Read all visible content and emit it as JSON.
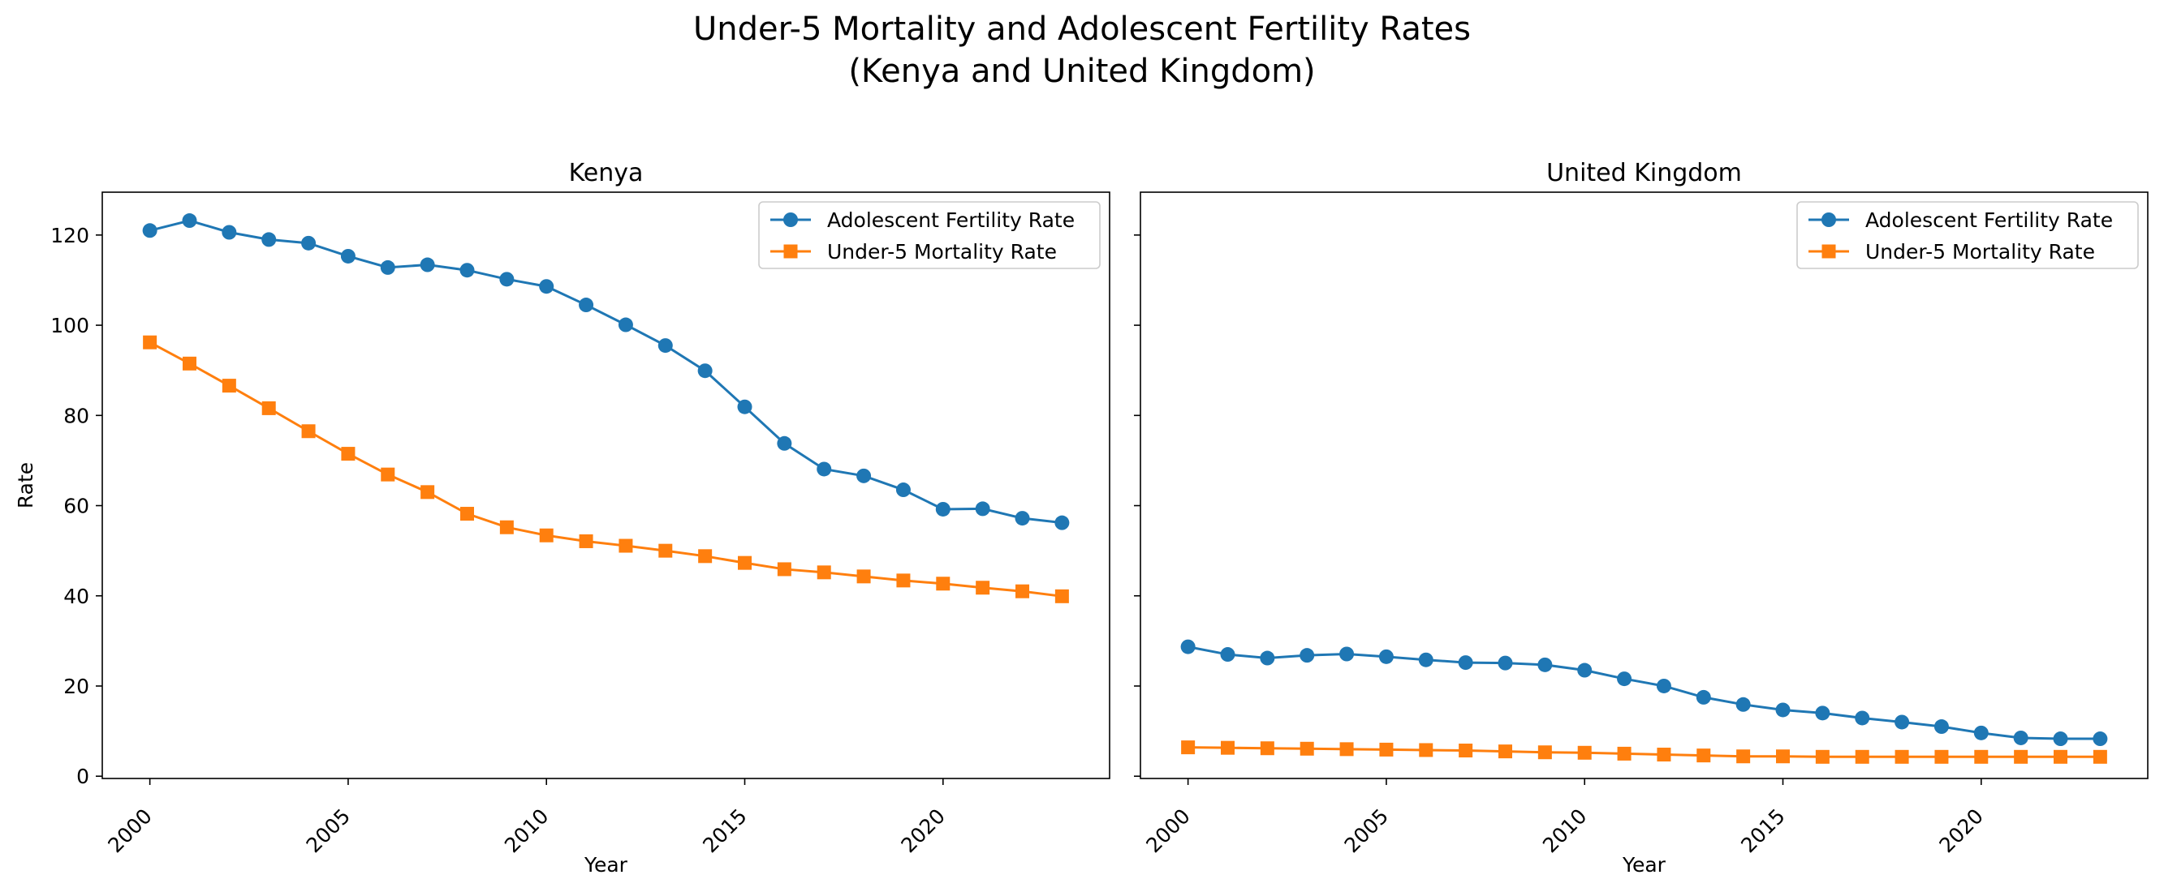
{
  "figure": {
    "title_line1": "Under-5 Mortality and Adolescent Fertility Rates",
    "title_line2": "(Kenya and United Kingdom)"
  },
  "chart_data": [
    {
      "type": "line",
      "title": "Kenya",
      "xlabel": "Year",
      "ylabel": "Rate",
      "x": [
        2000,
        2001,
        2002,
        2003,
        2004,
        2005,
        2006,
        2007,
        2008,
        2009,
        2010,
        2011,
        2012,
        2013,
        2014,
        2015,
        2016,
        2017,
        2018,
        2019,
        2020,
        2021,
        2022,
        2023
      ],
      "xticks": [
        2000,
        2005,
        2010,
        2015,
        2020
      ],
      "yticks": [
        0,
        20,
        40,
        60,
        80,
        100,
        120
      ],
      "xlim": [
        1998.8,
        2024.2
      ],
      "ylim": [
        -0.5,
        129.5
      ],
      "grid": false,
      "legend": "upper right",
      "series": [
        {
          "name": "Adolescent Fertility Rate",
          "color": "#1f77b4",
          "marker": "circle",
          "values": [
            121.0,
            123.2,
            120.6,
            119.0,
            118.2,
            115.3,
            112.8,
            113.4,
            112.2,
            110.2,
            108.6,
            104.5,
            100.1,
            95.5,
            89.9,
            81.9,
            73.8,
            68.1,
            66.6,
            63.5,
            59.2,
            59.3,
            57.2,
            56.2
          ]
        },
        {
          "name": "Under-5 Mortality Rate",
          "color": "#ff7f0e",
          "marker": "square",
          "values": [
            96.2,
            91.5,
            86.6,
            81.6,
            76.5,
            71.5,
            66.9,
            63.0,
            58.2,
            55.2,
            53.4,
            52.1,
            51.1,
            50.0,
            48.8,
            47.3,
            45.9,
            45.2,
            44.3,
            43.4,
            42.7,
            41.8,
            41.0,
            39.9
          ]
        }
      ]
    },
    {
      "type": "line",
      "title": "United Kingdom",
      "xlabel": "Year",
      "ylabel": "",
      "x": [
        2000,
        2001,
        2002,
        2003,
        2004,
        2005,
        2006,
        2007,
        2008,
        2009,
        2010,
        2011,
        2012,
        2013,
        2014,
        2015,
        2016,
        2017,
        2018,
        2019,
        2020,
        2021,
        2022,
        2023
      ],
      "xticks": [
        2000,
        2005,
        2010,
        2015,
        2020
      ],
      "yticks": [
        0,
        20,
        40,
        60,
        80,
        100,
        120
      ],
      "xlim": [
        1998.8,
        2024.2
      ],
      "ylim": [
        -0.5,
        129.5
      ],
      "sharey": true,
      "grid": false,
      "legend": "upper right",
      "series": [
        {
          "name": "Adolescent Fertility Rate",
          "color": "#1f77b4",
          "marker": "circle",
          "values": [
            28.7,
            27.0,
            26.2,
            26.8,
            27.1,
            26.5,
            25.8,
            25.2,
            25.1,
            24.7,
            23.5,
            21.6,
            20.0,
            17.5,
            15.9,
            14.7,
            14.0,
            12.9,
            12.0,
            11.0,
            9.6,
            8.5,
            8.3,
            8.3
          ]
        },
        {
          "name": "Under-5 Mortality Rate",
          "color": "#ff7f0e",
          "marker": "square",
          "values": [
            6.4,
            6.3,
            6.2,
            6.1,
            6.0,
            5.9,
            5.8,
            5.7,
            5.5,
            5.3,
            5.2,
            5.0,
            4.8,
            4.6,
            4.4,
            4.4,
            4.3,
            4.3,
            4.3,
            4.3,
            4.3,
            4.3,
            4.3,
            4.3
          ]
        }
      ]
    }
  ]
}
